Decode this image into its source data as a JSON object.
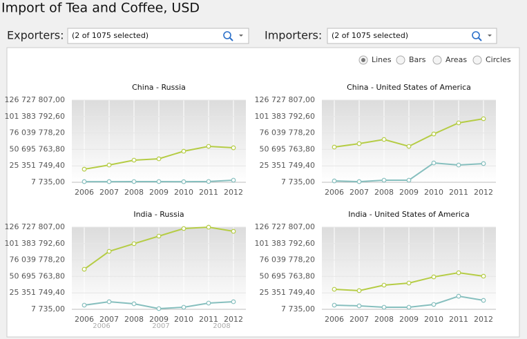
{
  "header": {
    "title": "Import of Tea and Coffee, USD"
  },
  "filters": {
    "exporters": {
      "label": "Exporters:",
      "value": "(2 of 1075 selected)"
    },
    "importers": {
      "label": "Importers:",
      "value": "(2 of 1075 selected)"
    }
  },
  "view_options": {
    "options": [
      "Lines",
      "Bars",
      "Areas",
      "Circles"
    ],
    "selected": 0
  },
  "chart_data": [
    {
      "type": "line",
      "title": "China - Russia",
      "categories": [
        "2006",
        "2007",
        "2008",
        "2009",
        "2010",
        "2011",
        "2012"
      ],
      "ylim": [
        7735,
        126727807
      ],
      "yticks": [
        {
          "value": 7735,
          "label": "7 735,00"
        },
        {
          "value": 25351749.4,
          "label": "25 351 749,40"
        },
        {
          "value": 50695763.8,
          "label": "50 695 763,80"
        },
        {
          "value": 76039778.2,
          "label": "76 039 778,20"
        },
        {
          "value": 101383792.6,
          "label": "101 383 792,60"
        },
        {
          "value": 126727807,
          "label": "126 727 807,00"
        }
      ],
      "series": [
        {
          "color": "#b5cc44",
          "values": [
            20200000,
            26600000,
            34100000,
            36200000,
            47900000,
            55400000,
            53200000
          ]
        },
        {
          "color": "#86bfbe",
          "values": [
            1000000,
            1000000,
            1100000,
            1100000,
            900000,
            1200000,
            3200000
          ]
        }
      ]
    },
    {
      "type": "line",
      "title": "China - United States of America",
      "categories": [
        "2006",
        "2007",
        "2008",
        "2009",
        "2010",
        "2011",
        "2012"
      ],
      "ylim": [
        7735,
        126727807
      ],
      "yticks": [
        {
          "value": 7735,
          "label": "7 735,00"
        },
        {
          "value": 25351749.4,
          "label": "25 351 749,40"
        },
        {
          "value": 50695763.8,
          "label": "50 695 763,80"
        },
        {
          "value": 76039778.2,
          "label": "76 039 778,20"
        },
        {
          "value": 101383792.6,
          "label": "101 383 792,60"
        },
        {
          "value": 126727807,
          "label": "126 727 807,00"
        }
      ],
      "series": [
        {
          "color": "#b5cc44",
          "values": [
            54300000,
            59600000,
            66000000,
            55400000,
            74500000,
            91600000,
            98000000
          ]
        },
        {
          "color": "#86bfbe",
          "values": [
            2100000,
            1000000,
            3200000,
            3200000,
            29800000,
            26600000,
            28800000
          ]
        }
      ]
    },
    {
      "type": "line",
      "title": "India - Russia",
      "categories": [
        "2006",
        "2007",
        "2008",
        "2009",
        "2010",
        "2011",
        "2012"
      ],
      "ylim": [
        7735,
        126727807
      ],
      "yticks": [
        {
          "value": 7735,
          "label": "7 735,00"
        },
        {
          "value": 25351749.4,
          "label": "25 351 749,40"
        },
        {
          "value": 50695763.8,
          "label": "50 695 763,80"
        },
        {
          "value": 76039778.2,
          "label": "76 039 778,20"
        },
        {
          "value": 101383792.6,
          "label": "101 383 792,60"
        },
        {
          "value": 126727807,
          "label": "126 727 807,00"
        }
      ],
      "series": [
        {
          "color": "#b5cc44",
          "values": [
            61800000,
            89400000,
            101200000,
            112900000,
            124600000,
            126700000,
            120300000
          ]
        },
        {
          "color": "#86bfbe",
          "values": [
            6400000,
            11700000,
            8500000,
            1100000,
            3200000,
            9600000,
            11700000
          ]
        }
      ]
    },
    {
      "type": "line",
      "title": "India - United States of America",
      "categories": [
        "2006",
        "2007",
        "2008",
        "2009",
        "2010",
        "2011",
        "2012"
      ],
      "ylim": [
        7735,
        126727807
      ],
      "yticks": [
        {
          "value": 7735,
          "label": "7 735,00"
        },
        {
          "value": 25351749.4,
          "label": "25 351 749,40"
        },
        {
          "value": 50695763.8,
          "label": "50 695 763,80"
        },
        {
          "value": 76039778.2,
          "label": "76 039 778,20"
        },
        {
          "value": 101383792.6,
          "label": "101 383 792,60"
        },
        {
          "value": 126727807,
          "label": "126 727 807,00"
        }
      ],
      "series": [
        {
          "color": "#b5cc44",
          "values": [
            30900000,
            28800000,
            37300000,
            40500000,
            50000000,
            56400000,
            51100000
          ]
        },
        {
          "color": "#86bfbe",
          "values": [
            6400000,
            5300000,
            3200000,
            3200000,
            7500000,
            20200000,
            13800000
          ]
        }
      ]
    }
  ],
  "ghost_labels": [
    "2006",
    "2007",
    "2008"
  ]
}
